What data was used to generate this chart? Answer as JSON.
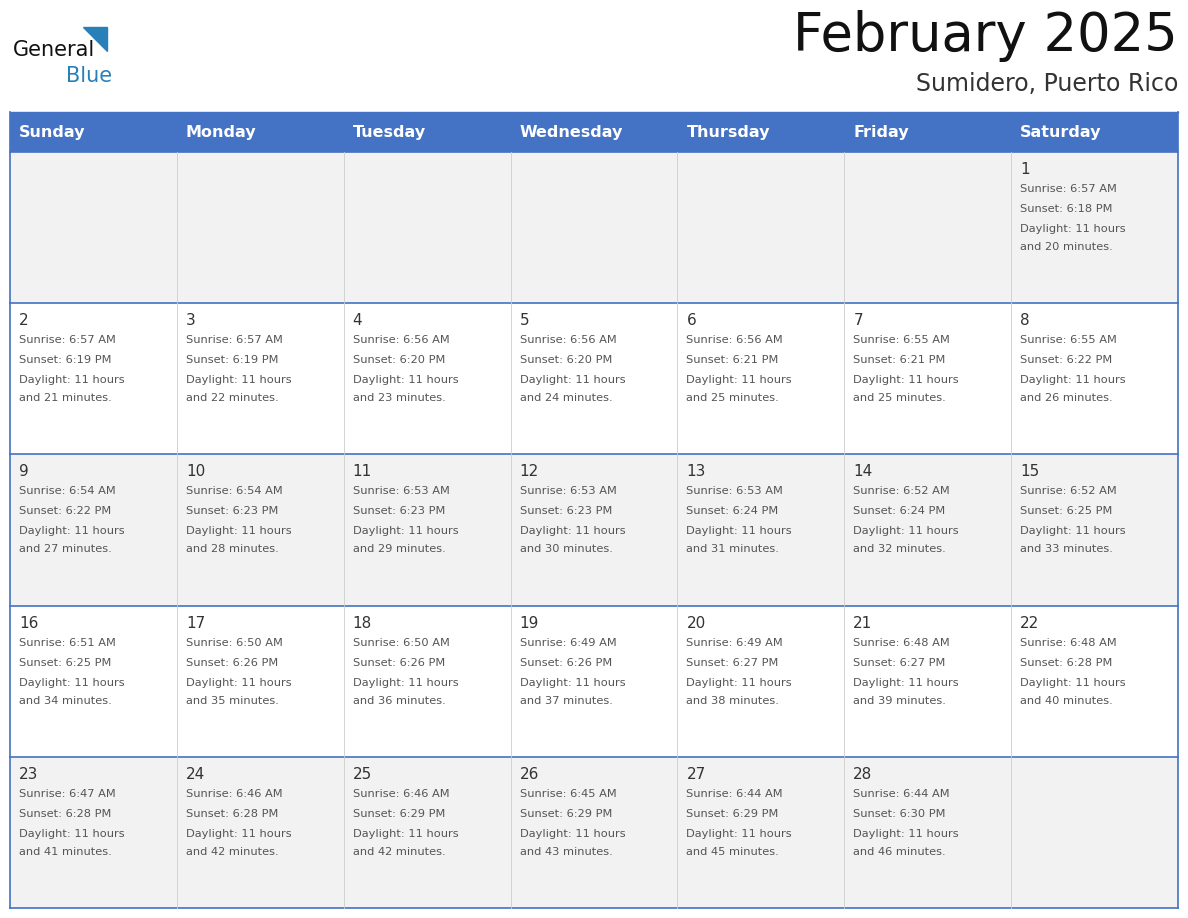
{
  "title": "February 2025",
  "subtitle": "Sumidero, Puerto Rico",
  "days_of_week": [
    "Sunday",
    "Monday",
    "Tuesday",
    "Wednesday",
    "Thursday",
    "Friday",
    "Saturday"
  ],
  "header_bg": "#4472C4",
  "header_text": "#FFFFFF",
  "cell_bg_odd": "#F2F2F2",
  "cell_bg_even": "#FFFFFF",
  "cell_border": "#4472C4",
  "row_divider": "#4472C4",
  "col_divider": "#CCCCCC",
  "day_num_color": "#333333",
  "day_text_color": "#555555",
  "title_color": "#111111",
  "subtitle_color": "#333333",
  "logo_general_color": "#111111",
  "logo_blue_color": "#2980B9",
  "calendar": [
    [
      {
        "day": null,
        "sunrise": null,
        "sunset": null,
        "daylight_hours": null,
        "daylight_minutes": null
      },
      {
        "day": null,
        "sunrise": null,
        "sunset": null,
        "daylight_hours": null,
        "daylight_minutes": null
      },
      {
        "day": null,
        "sunrise": null,
        "sunset": null,
        "daylight_hours": null,
        "daylight_minutes": null
      },
      {
        "day": null,
        "sunrise": null,
        "sunset": null,
        "daylight_hours": null,
        "daylight_minutes": null
      },
      {
        "day": null,
        "sunrise": null,
        "sunset": null,
        "daylight_hours": null,
        "daylight_minutes": null
      },
      {
        "day": null,
        "sunrise": null,
        "sunset": null,
        "daylight_hours": null,
        "daylight_minutes": null
      },
      {
        "day": 1,
        "sunrise": "6:57 AM",
        "sunset": "6:18 PM",
        "daylight_hours": 11,
        "daylight_minutes": 20
      }
    ],
    [
      {
        "day": 2,
        "sunrise": "6:57 AM",
        "sunset": "6:19 PM",
        "daylight_hours": 11,
        "daylight_minutes": 21
      },
      {
        "day": 3,
        "sunrise": "6:57 AM",
        "sunset": "6:19 PM",
        "daylight_hours": 11,
        "daylight_minutes": 22
      },
      {
        "day": 4,
        "sunrise": "6:56 AM",
        "sunset": "6:20 PM",
        "daylight_hours": 11,
        "daylight_minutes": 23
      },
      {
        "day": 5,
        "sunrise": "6:56 AM",
        "sunset": "6:20 PM",
        "daylight_hours": 11,
        "daylight_minutes": 24
      },
      {
        "day": 6,
        "sunrise": "6:56 AM",
        "sunset": "6:21 PM",
        "daylight_hours": 11,
        "daylight_minutes": 25
      },
      {
        "day": 7,
        "sunrise": "6:55 AM",
        "sunset": "6:21 PM",
        "daylight_hours": 11,
        "daylight_minutes": 25
      },
      {
        "day": 8,
        "sunrise": "6:55 AM",
        "sunset": "6:22 PM",
        "daylight_hours": 11,
        "daylight_minutes": 26
      }
    ],
    [
      {
        "day": 9,
        "sunrise": "6:54 AM",
        "sunset": "6:22 PM",
        "daylight_hours": 11,
        "daylight_minutes": 27
      },
      {
        "day": 10,
        "sunrise": "6:54 AM",
        "sunset": "6:23 PM",
        "daylight_hours": 11,
        "daylight_minutes": 28
      },
      {
        "day": 11,
        "sunrise": "6:53 AM",
        "sunset": "6:23 PM",
        "daylight_hours": 11,
        "daylight_minutes": 29
      },
      {
        "day": 12,
        "sunrise": "6:53 AM",
        "sunset": "6:23 PM",
        "daylight_hours": 11,
        "daylight_minutes": 30
      },
      {
        "day": 13,
        "sunrise": "6:53 AM",
        "sunset": "6:24 PM",
        "daylight_hours": 11,
        "daylight_minutes": 31
      },
      {
        "day": 14,
        "sunrise": "6:52 AM",
        "sunset": "6:24 PM",
        "daylight_hours": 11,
        "daylight_minutes": 32
      },
      {
        "day": 15,
        "sunrise": "6:52 AM",
        "sunset": "6:25 PM",
        "daylight_hours": 11,
        "daylight_minutes": 33
      }
    ],
    [
      {
        "day": 16,
        "sunrise": "6:51 AM",
        "sunset": "6:25 PM",
        "daylight_hours": 11,
        "daylight_minutes": 34
      },
      {
        "day": 17,
        "sunrise": "6:50 AM",
        "sunset": "6:26 PM",
        "daylight_hours": 11,
        "daylight_minutes": 35
      },
      {
        "day": 18,
        "sunrise": "6:50 AM",
        "sunset": "6:26 PM",
        "daylight_hours": 11,
        "daylight_minutes": 36
      },
      {
        "day": 19,
        "sunrise": "6:49 AM",
        "sunset": "6:26 PM",
        "daylight_hours": 11,
        "daylight_minutes": 37
      },
      {
        "day": 20,
        "sunrise": "6:49 AM",
        "sunset": "6:27 PM",
        "daylight_hours": 11,
        "daylight_minutes": 38
      },
      {
        "day": 21,
        "sunrise": "6:48 AM",
        "sunset": "6:27 PM",
        "daylight_hours": 11,
        "daylight_minutes": 39
      },
      {
        "day": 22,
        "sunrise": "6:48 AM",
        "sunset": "6:28 PM",
        "daylight_hours": 11,
        "daylight_minutes": 40
      }
    ],
    [
      {
        "day": 23,
        "sunrise": "6:47 AM",
        "sunset": "6:28 PM",
        "daylight_hours": 11,
        "daylight_minutes": 41
      },
      {
        "day": 24,
        "sunrise": "6:46 AM",
        "sunset": "6:28 PM",
        "daylight_hours": 11,
        "daylight_minutes": 42
      },
      {
        "day": 25,
        "sunrise": "6:46 AM",
        "sunset": "6:29 PM",
        "daylight_hours": 11,
        "daylight_minutes": 42
      },
      {
        "day": 26,
        "sunrise": "6:45 AM",
        "sunset": "6:29 PM",
        "daylight_hours": 11,
        "daylight_minutes": 43
      },
      {
        "day": 27,
        "sunrise": "6:44 AM",
        "sunset": "6:29 PM",
        "daylight_hours": 11,
        "daylight_minutes": 45
      },
      {
        "day": 28,
        "sunrise": "6:44 AM",
        "sunset": "6:30 PM",
        "daylight_hours": 11,
        "daylight_minutes": 46
      },
      {
        "day": null,
        "sunrise": null,
        "sunset": null,
        "daylight_hours": null,
        "daylight_minutes": null
      }
    ]
  ]
}
